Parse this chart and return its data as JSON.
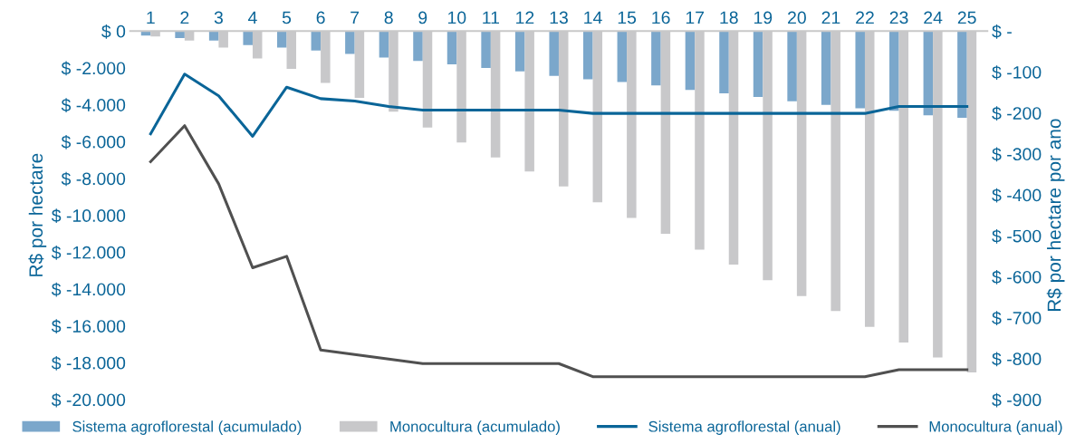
{
  "chart_data": {
    "type": "bar",
    "ylabel": "R$ por hectare",
    "y2label": "R$ por hectare por ano",
    "categories": [
      "1",
      "2",
      "3",
      "4",
      "5",
      "6",
      "7",
      "8",
      "9",
      "10",
      "11",
      "12",
      "13",
      "14",
      "15",
      "16",
      "17",
      "18",
      "19",
      "20",
      "21",
      "22",
      "23",
      "24",
      "25"
    ],
    "series": [
      {
        "name": "Sistema agroflorestal (acumulado)",
        "color": "#7ba7cb",
        "values": [
          -240,
          -380,
          -520,
          -760,
          -900,
          -1050,
          -1240,
          -1430,
          -1620,
          -1810,
          -2000,
          -2190,
          -2430,
          -2620,
          -2760,
          -2950,
          -3190,
          -3380,
          -3570,
          -3810,
          -4000,
          -4190,
          -4330,
          -4570,
          -4710
        ]
      },
      {
        "name": "Monocultura (acumulado)",
        "color": "#c8c8ca",
        "values": [
          -290,
          -520,
          -900,
          -1480,
          -2050,
          -2810,
          -3620,
          -4380,
          -5240,
          -6050,
          -6860,
          -7620,
          -8430,
          -9290,
          -10140,
          -11000,
          -11860,
          -12670,
          -13520,
          -14380,
          -15190,
          -16050,
          -16900,
          -17710,
          -18520
        ]
      },
      {
        "name": "Sistema agroflorestal (anual)",
        "type": "line",
        "axis": "y2",
        "color": "#0a6598",
        "values": [
          -251,
          -105,
          -158,
          -257,
          -137,
          -165,
          -171,
          -184,
          -193,
          -193,
          -193,
          -193,
          -193,
          -201,
          -201,
          -201,
          -201,
          -201,
          -201,
          -201,
          -201,
          -201,
          -184,
          -184,
          -184
        ]
      },
      {
        "name": "Monocultura (anual)",
        "type": "line",
        "axis": "y2",
        "color": "#505050",
        "values": [
          -319,
          -231,
          -373,
          -578,
          -550,
          -779,
          -790,
          -801,
          -812,
          -812,
          -812,
          -812,
          -812,
          -844,
          -844,
          -844,
          -844,
          -844,
          -844,
          -844,
          -844,
          -844,
          -827,
          -827,
          -827
        ]
      }
    ],
    "ylim": [
      -20000,
      0
    ],
    "yticks": [
      {
        "value": 0,
        "label": "$ 0"
      },
      {
        "value": -2000,
        "label": "$ -2.000"
      },
      {
        "value": -4000,
        "label": "$ -4.000"
      },
      {
        "value": -6000,
        "label": "$ -6.000"
      },
      {
        "value": -8000,
        "label": "$ -8.000"
      },
      {
        "value": -10000,
        "label": "$ -10.000"
      },
      {
        "value": -12000,
        "label": "$ -12.000"
      },
      {
        "value": -14000,
        "label": "$ -14.000"
      },
      {
        "value": -16000,
        "label": "$ -16.000"
      },
      {
        "value": -18000,
        "label": "$ -18.000"
      },
      {
        "value": -20000,
        "label": "$ -20.000"
      }
    ],
    "y2lim": [
      -900,
      0
    ],
    "y2ticks": [
      {
        "value": 0,
        "label": "$ -"
      },
      {
        "value": -100,
        "label": "$ -100"
      },
      {
        "value": -200,
        "label": "$ -200"
      },
      {
        "value": -300,
        "label": "$ -300"
      },
      {
        "value": -400,
        "label": "$ -400"
      },
      {
        "value": -500,
        "label": "$ -500"
      },
      {
        "value": -600,
        "label": "$ -600"
      },
      {
        "value": -700,
        "label": "$ -700"
      },
      {
        "value": -800,
        "label": "$ -800"
      },
      {
        "value": -900,
        "label": "$ -900"
      }
    ],
    "grid": false,
    "legend": "bottom",
    "marker": "none",
    "line_style": "solid"
  }
}
